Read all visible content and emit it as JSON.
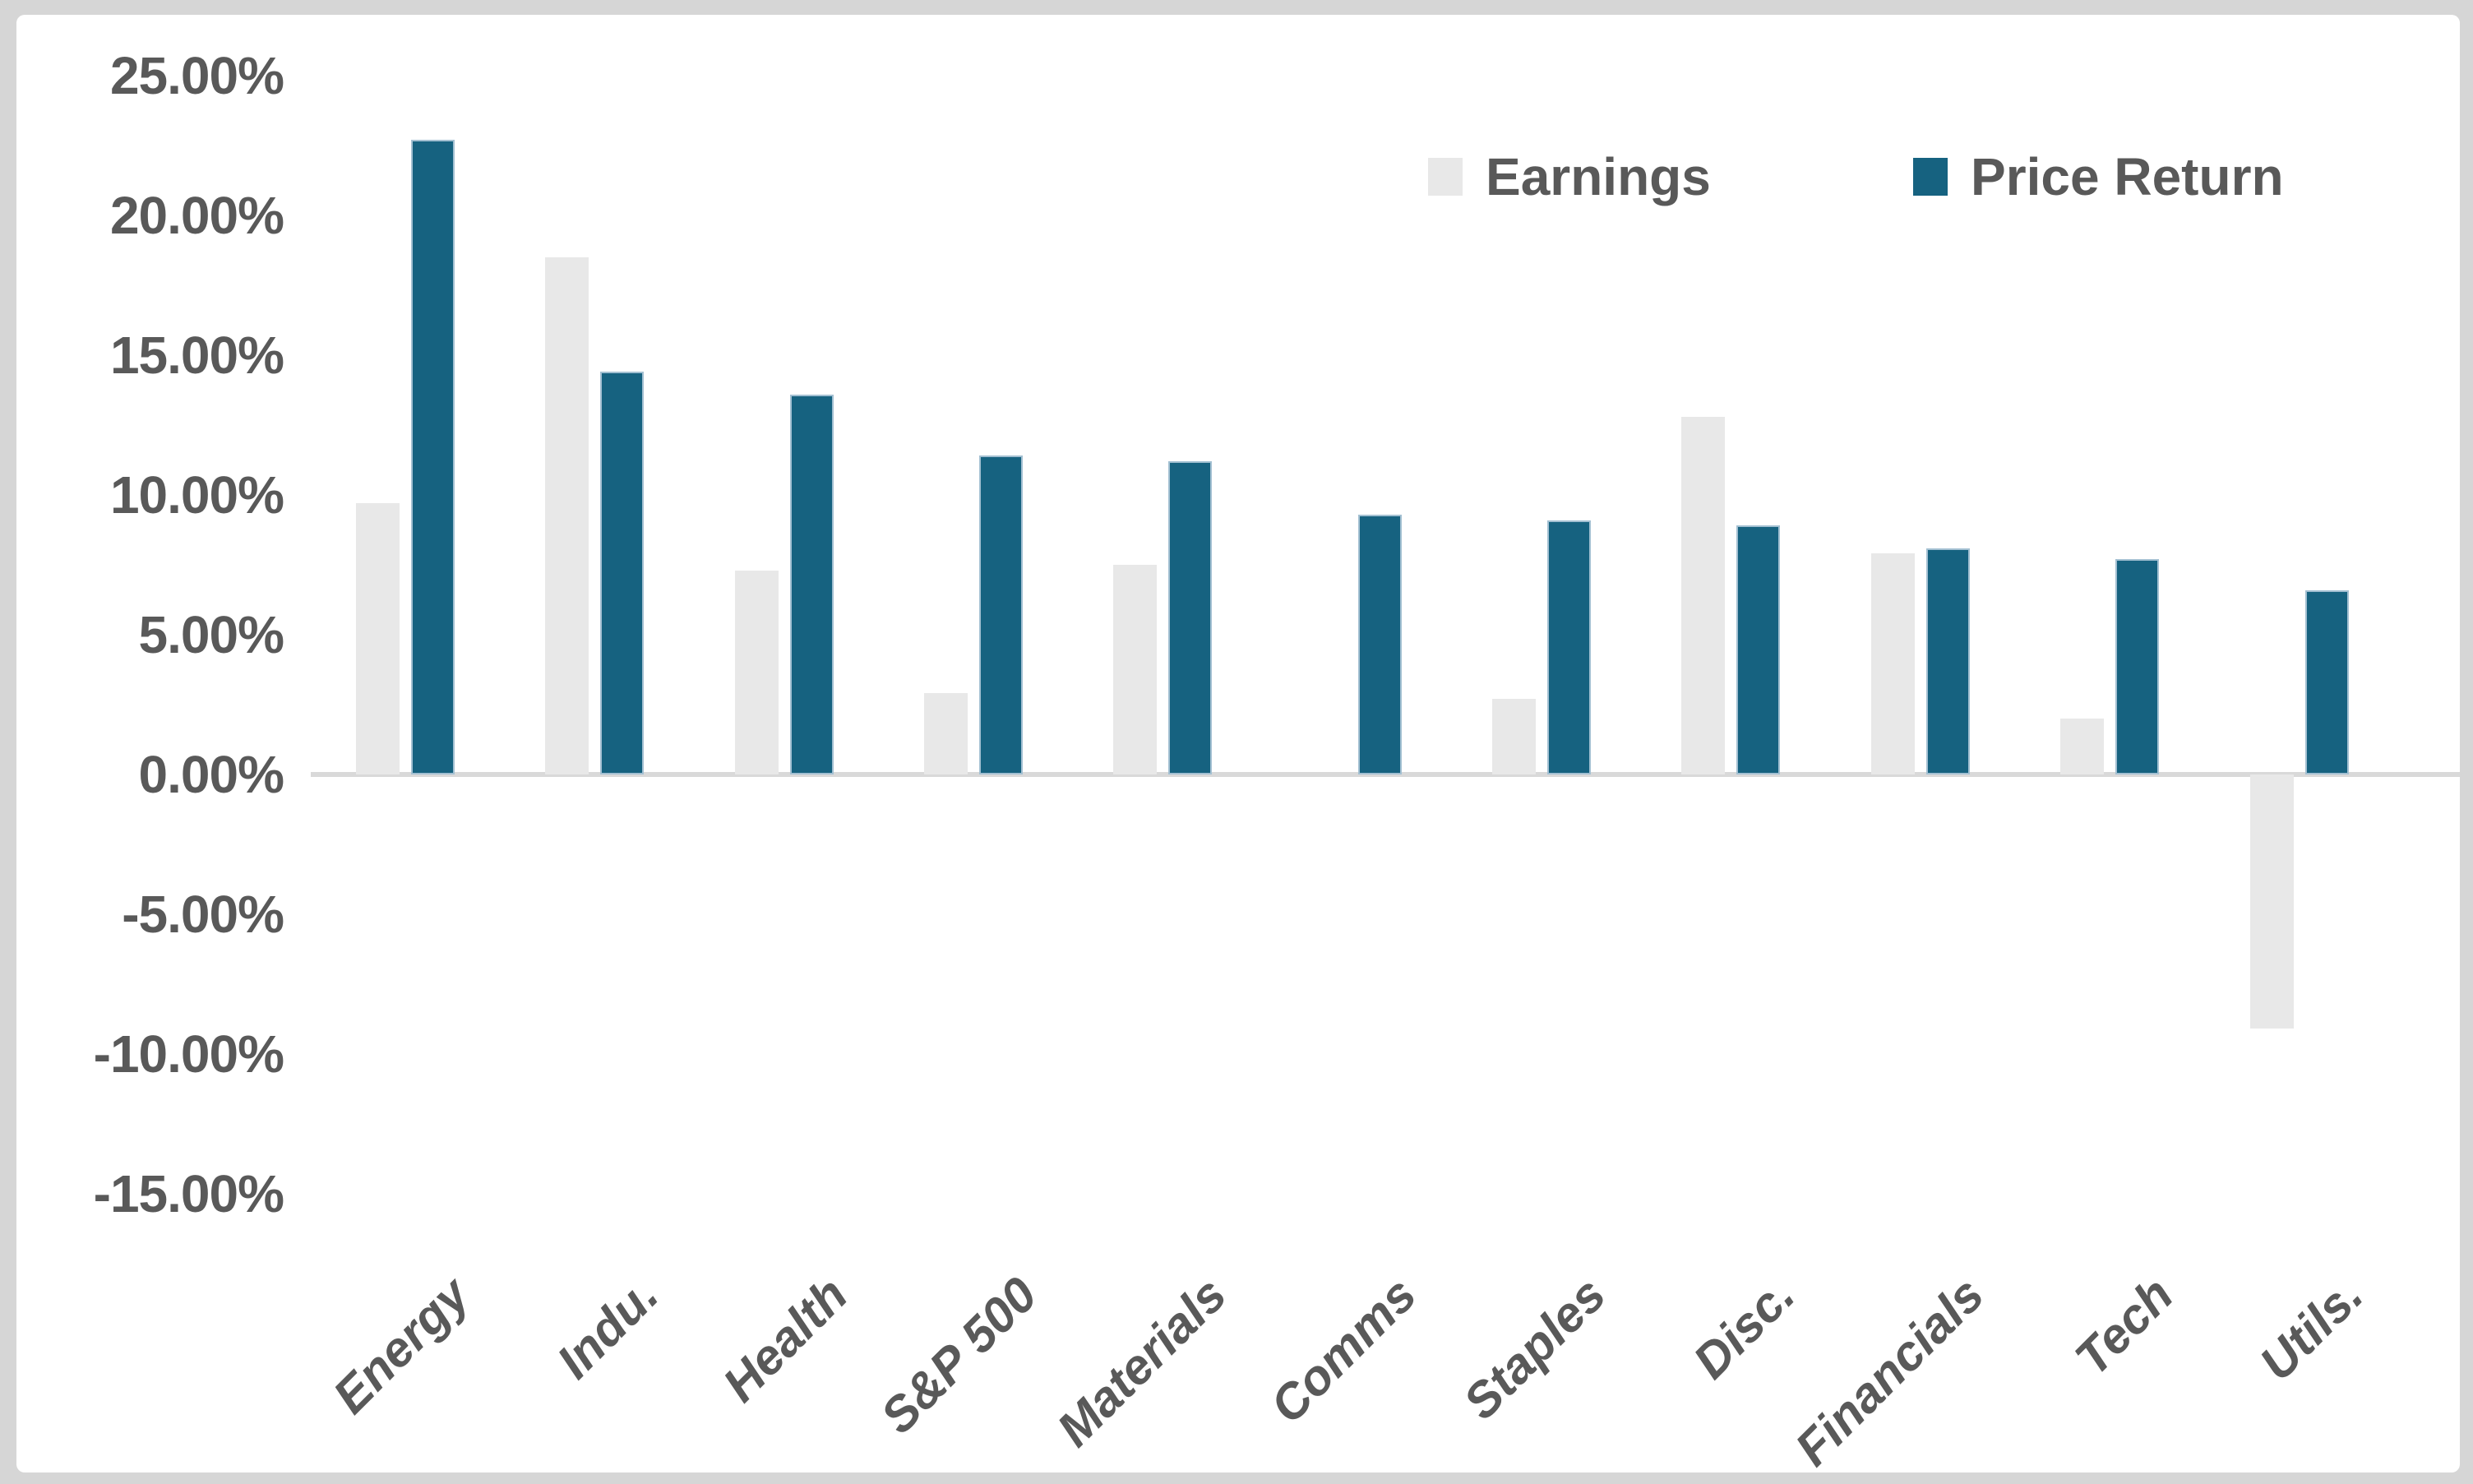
{
  "chart_data": {
    "type": "bar",
    "categories": [
      "Energy",
      "Indu.",
      "Health",
      "S&P 500",
      "Materials",
      "Comms",
      "Staples",
      "Disc.",
      "Financials",
      "Tech",
      "Utils."
    ],
    "series": [
      {
        "name": "Earnings",
        "color": "#e8e8e8",
        "values": [
          9.7,
          18.5,
          7.3,
          2.9,
          7.5,
          0,
          2.7,
          12.8,
          7.9,
          2.0,
          -9.1
        ]
      },
      {
        "name": "Price Return",
        "color": "#166280",
        "values": [
          22.7,
          14.4,
          13.6,
          11.4,
          11.2,
          9.3,
          9.1,
          8.9,
          8.1,
          7.7,
          6.6
        ]
      }
    ],
    "title": "",
    "xlabel": "",
    "ylabel": "",
    "ylim": [
      -15,
      25
    ],
    "ytick_step": 5,
    "yticks": [
      {
        "value": 25,
        "label": "25.00%"
      },
      {
        "value": 20,
        "label": "20.00%"
      },
      {
        "value": 15,
        "label": "15.00%"
      },
      {
        "value": 10,
        "label": "10.00%"
      },
      {
        "value": 5,
        "label": "5.00%"
      },
      {
        "value": 0,
        "label": "0.00%"
      },
      {
        "value": -5,
        "label": "-5.00%"
      },
      {
        "value": -10,
        "label": "-10.00%"
      },
      {
        "value": -15,
        "label": "-15.00%"
      }
    ],
    "grid": false,
    "legend_position": "top-right"
  },
  "legend": {
    "items": [
      {
        "label": "Earnings",
        "color": "#e8e8e8"
      },
      {
        "label": "Price Return",
        "color": "#166280"
      }
    ]
  },
  "style": {
    "axis_line_color": "#d9d9d9",
    "text_color": "#595959",
    "frame_color": "#d6d6d6",
    "background": "#ffffff"
  }
}
